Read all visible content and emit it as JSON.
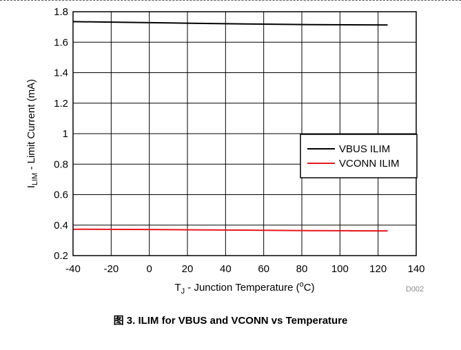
{
  "caption": "图 3. ILIM for VBUS and VCONN vs Temperature",
  "figure_code": "D002",
  "chart_data": {
    "type": "line",
    "title": "",
    "xlabel_main": "T",
    "xlabel_sub": "J",
    "xlabel_rest": " - Junction Temperature (",
    "xlabel_sup": "o",
    "xlabel_end": "C)",
    "ylabel_main": "I",
    "ylabel_sub": "LIM",
    "ylabel_rest": " - Limit Current (mA)",
    "xlim": [
      -40,
      140
    ],
    "ylim": [
      0.2,
      1.8
    ],
    "xticks": [
      -40,
      -20,
      0,
      20,
      40,
      60,
      80,
      100,
      120,
      140
    ],
    "xtick_labels": [
      "-40",
      "-20",
      "0",
      "20",
      "40",
      "60",
      "80",
      "100",
      "120",
      "140"
    ],
    "yticks": [
      0.2,
      0.4,
      0.6,
      0.8,
      1.0,
      1.2,
      1.4,
      1.6,
      1.8
    ],
    "ytick_labels": [
      "0.2",
      "0.4",
      "0.6",
      "0.8",
      "1",
      "1.2",
      "1.4",
      "1.6",
      "1.8"
    ],
    "grid": true,
    "legend_position": "center-right",
    "series": [
      {
        "name": "VBUS ILIM",
        "color": "#000000",
        "x": [
          -40,
          0,
          25,
          50,
          85,
          105,
          125
        ],
        "y": [
          1.735,
          1.728,
          1.724,
          1.72,
          1.715,
          1.714,
          1.713
        ]
      },
      {
        "name": "VCONN ILIM",
        "color": "#e8141c",
        "x": [
          -40,
          0,
          25,
          50,
          85,
          105,
          125
        ],
        "y": [
          0.373,
          0.371,
          0.369,
          0.367,
          0.364,
          0.363,
          0.362
        ]
      }
    ]
  }
}
